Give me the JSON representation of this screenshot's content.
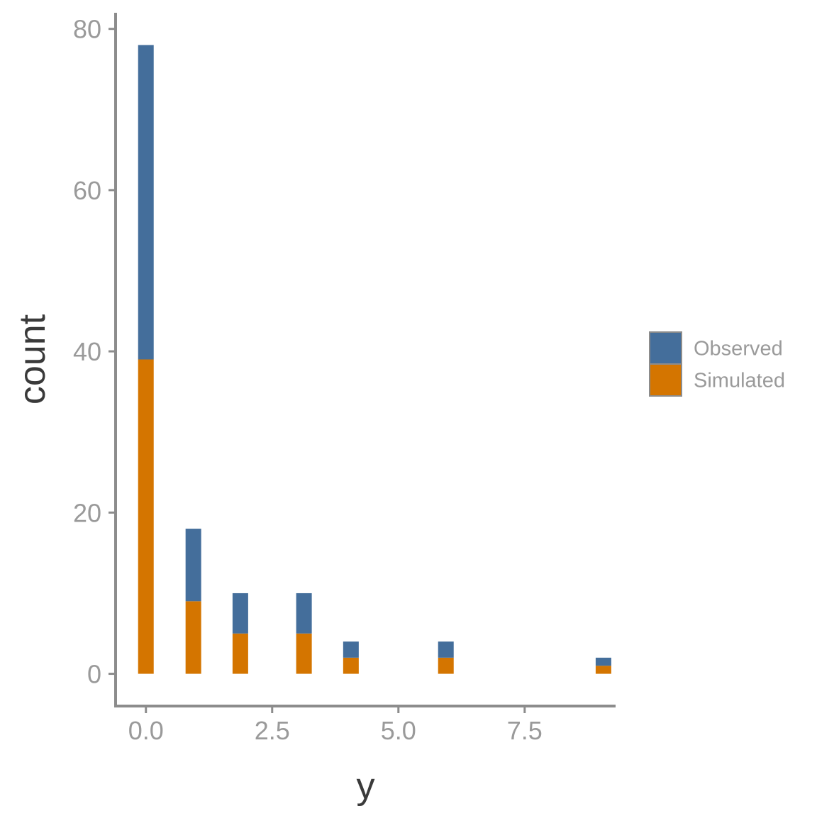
{
  "chart_data": {
    "type": "bar",
    "stacked": true,
    "title": "",
    "xlabel": "y",
    "ylabel": "count",
    "xlim": [
      -0.6,
      9.3
    ],
    "ylim": [
      -4,
      82
    ],
    "x_ticks": [
      {
        "value": 0,
        "label": "0.0"
      },
      {
        "value": 2.5,
        "label": "2.5"
      },
      {
        "value": 5,
        "label": "5.0"
      },
      {
        "value": 7.5,
        "label": "7.5"
      }
    ],
    "y_ticks": [
      {
        "value": 0,
        "label": "0"
      },
      {
        "value": 20,
        "label": "20"
      },
      {
        "value": 40,
        "label": "40"
      },
      {
        "value": 60,
        "label": "60"
      },
      {
        "value": 80,
        "label": "80"
      }
    ],
    "grid": false,
    "legend": {
      "position": "right"
    },
    "bins": [
      0,
      0.94,
      1.87,
      3.13,
      4.06,
      5.94,
      9.06
    ],
    "series": [
      {
        "name": "Simulated",
        "color": "#d47500",
        "values": [
          39,
          9,
          5,
          5,
          2,
          2,
          1
        ]
      },
      {
        "name": "Observed",
        "color": "#446e9b",
        "values": [
          39,
          9,
          5,
          5,
          2,
          2,
          1
        ]
      }
    ]
  }
}
